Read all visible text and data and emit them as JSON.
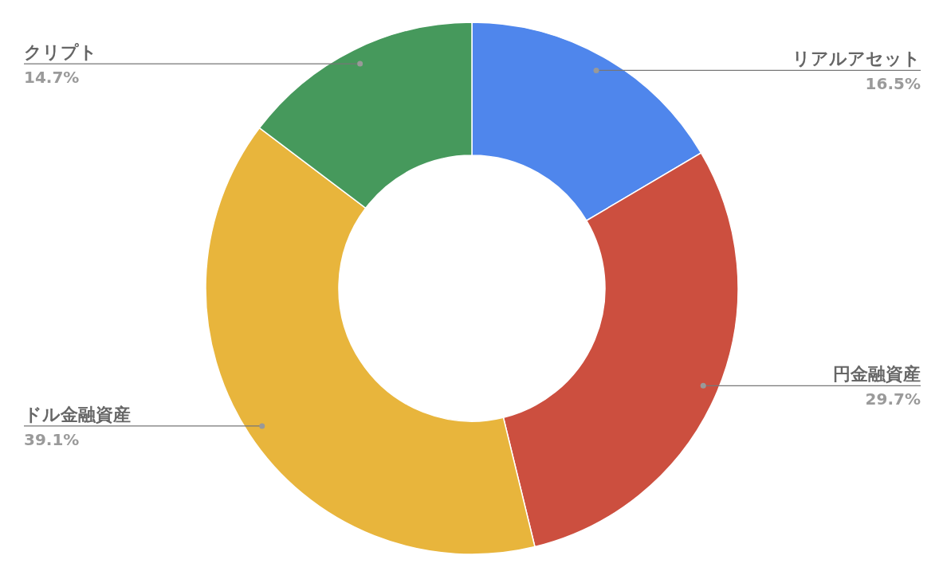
{
  "chart_data": {
    "type": "donut",
    "categories": [
      "リアルアセット",
      "円金融資産",
      "ドル金融資産",
      "クリプト"
    ],
    "values": [
      16.5,
      29.7,
      39.1,
      14.7
    ],
    "colors": [
      "#4f86ec",
      "#cc4f3f",
      "#e8b53c",
      "#46995c"
    ],
    "value_labels": [
      "16.5%",
      "29.7%",
      "39.1%",
      "14.7%"
    ]
  }
}
